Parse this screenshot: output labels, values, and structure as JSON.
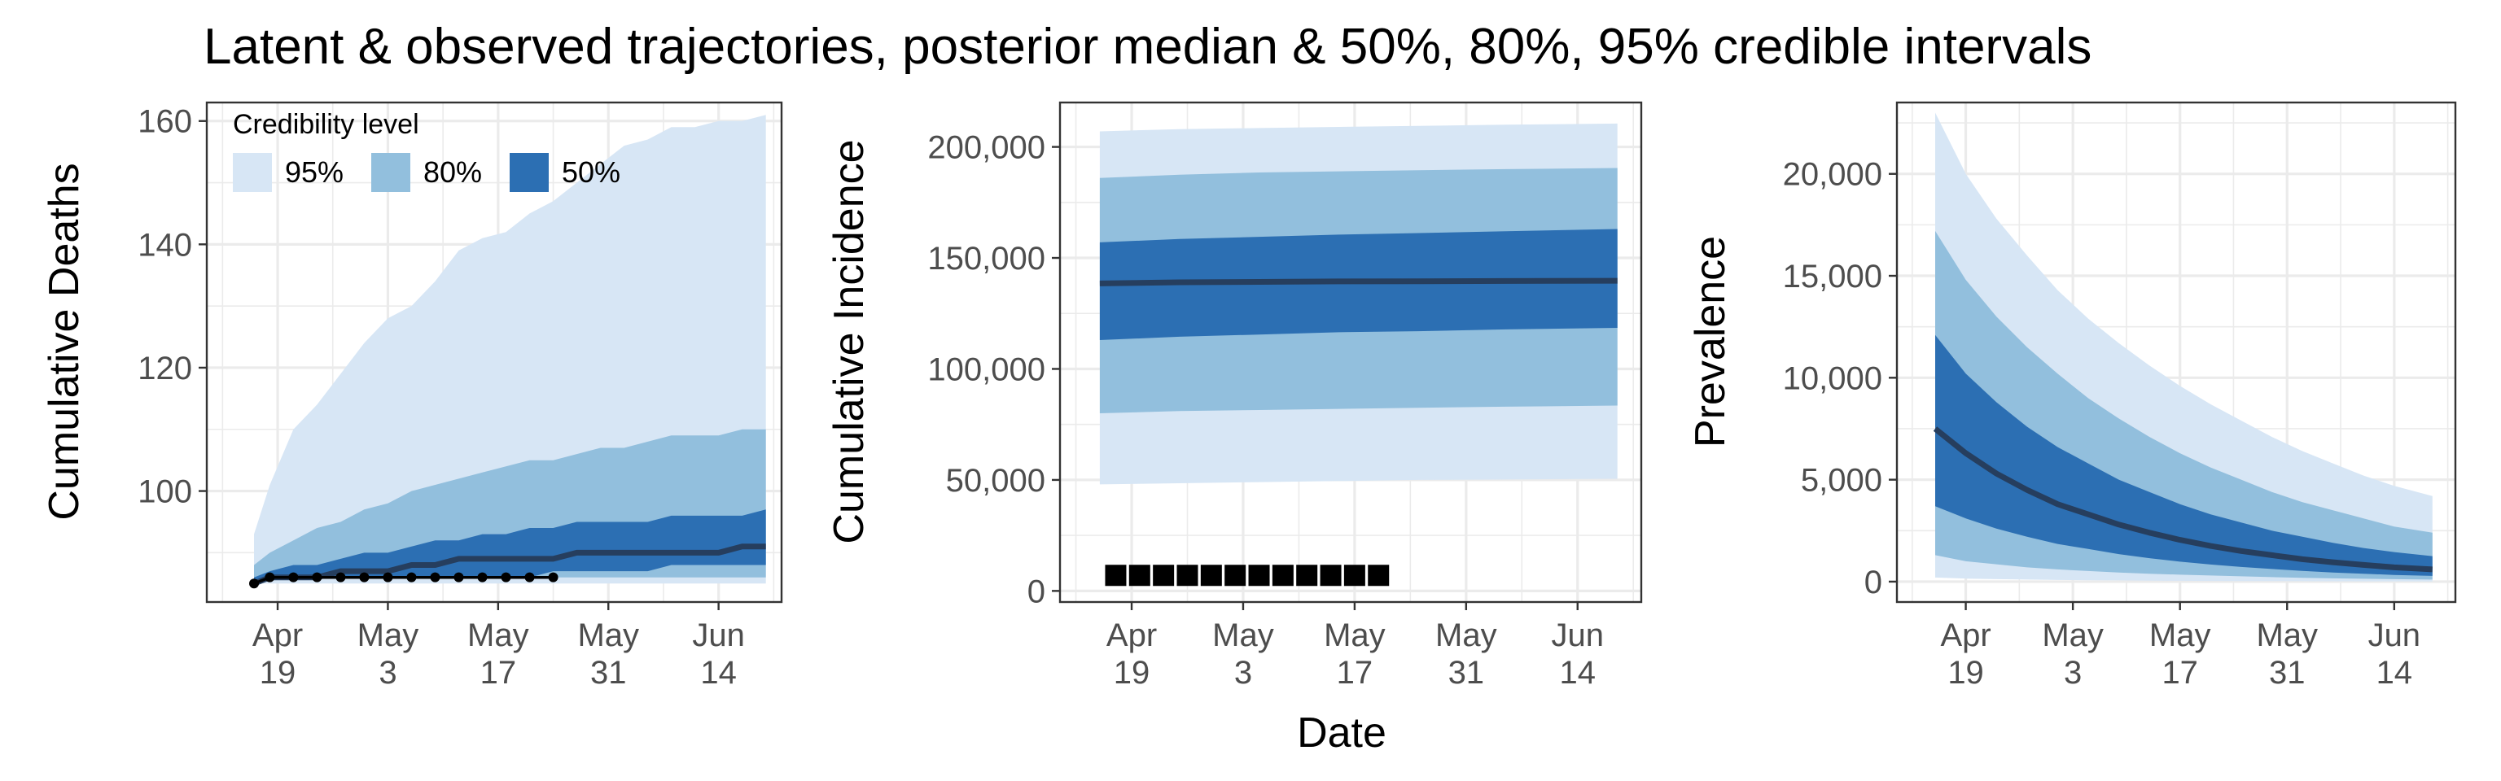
{
  "title": "Latent & observed trajectories, posterior median & 50%, 80%, 95% credible intervals",
  "shared_xlabel": "Date",
  "colors": {
    "band95": "#d7e6f5",
    "band80": "#92bfdd",
    "band50": "#2c6fb3",
    "median": "#263e5e",
    "observed": "#000000"
  },
  "chart_data": [
    {
      "type": "area",
      "ylabel": "Cumulative Deaths",
      "xlim": [
        "2020-04-10",
        "2020-06-22"
      ],
      "ylim": [
        82,
        163
      ],
      "x_ticks": [
        {
          "date": "2020-04-19",
          "line1": "Apr",
          "line2": "19"
        },
        {
          "date": "2020-05-03",
          "line1": "May",
          "line2": "3"
        },
        {
          "date": "2020-05-17",
          "line1": "May",
          "line2": "17"
        },
        {
          "date": "2020-05-31",
          "line1": "May",
          "line2": "31"
        },
        {
          "date": "2020-06-14",
          "line1": "Jun",
          "line2": "14"
        }
      ],
      "y_ticks": [
        {
          "value": 100,
          "label": "100"
        },
        {
          "value": 120,
          "label": "120"
        },
        {
          "value": 140,
          "label": "140"
        },
        {
          "value": 160,
          "label": "160"
        }
      ],
      "legend": {
        "title": "Credibility level",
        "placement": "top-left",
        "entries": [
          {
            "label": "95%",
            "color": "#d7e6f5"
          },
          {
            "label": "80%",
            "color": "#92bfdd"
          },
          {
            "label": "50%",
            "color": "#2c6fb3"
          }
        ]
      },
      "bands": [
        {
          "level": "95%",
          "x": [
            "2020-04-16",
            "2020-04-18",
            "2020-04-21",
            "2020-04-24",
            "2020-04-27",
            "2020-04-30",
            "2020-05-03",
            "2020-05-06",
            "2020-05-09",
            "2020-05-12",
            "2020-05-15",
            "2020-05-18",
            "2020-05-21",
            "2020-05-24",
            "2020-05-27",
            "2020-05-30",
            "2020-06-02",
            "2020-06-05",
            "2020-06-08",
            "2020-06-11",
            "2020-06-14",
            "2020-06-17",
            "2020-06-20"
          ],
          "lower": [
            85,
            85,
            85,
            85,
            85,
            85,
            85,
            85,
            85,
            85,
            85,
            85,
            85,
            85,
            85,
            85,
            85,
            85,
            85,
            85,
            85,
            85,
            85
          ],
          "upper": [
            93,
            101,
            110,
            114,
            119,
            124,
            128,
            130,
            134,
            139,
            141,
            142,
            145,
            147,
            150,
            153,
            156,
            157,
            159,
            159,
            160,
            160,
            161
          ]
        },
        {
          "level": "80%",
          "x": [
            "2020-04-16",
            "2020-04-18",
            "2020-04-21",
            "2020-04-24",
            "2020-04-27",
            "2020-04-30",
            "2020-05-03",
            "2020-05-06",
            "2020-05-09",
            "2020-05-12",
            "2020-05-15",
            "2020-05-18",
            "2020-05-21",
            "2020-05-24",
            "2020-05-27",
            "2020-05-30",
            "2020-06-02",
            "2020-06-05",
            "2020-06-08",
            "2020-06-11",
            "2020-06-14",
            "2020-06-17",
            "2020-06-20"
          ],
          "lower": [
            85,
            86,
            86,
            86,
            86,
            86,
            86,
            86,
            86,
            86,
            86,
            86,
            86,
            86,
            86,
            86,
            86,
            86,
            86,
            86,
            86,
            86,
            86
          ],
          "upper": [
            88,
            90,
            92,
            94,
            95,
            97,
            98,
            100,
            101,
            102,
            103,
            104,
            105,
            105,
            106,
            107,
            107,
            108,
            109,
            109,
            109,
            110,
            110
          ]
        },
        {
          "level": "50%",
          "x": [
            "2020-04-16",
            "2020-04-18",
            "2020-04-21",
            "2020-04-24",
            "2020-04-27",
            "2020-04-30",
            "2020-05-03",
            "2020-05-06",
            "2020-05-09",
            "2020-05-12",
            "2020-05-15",
            "2020-05-18",
            "2020-05-21",
            "2020-05-24",
            "2020-05-27",
            "2020-05-30",
            "2020-06-02",
            "2020-06-05",
            "2020-06-08",
            "2020-06-11",
            "2020-06-14",
            "2020-06-17",
            "2020-06-20"
          ],
          "lower": [
            85,
            86,
            86,
            86,
            86,
            86,
            86,
            86,
            86,
            86,
            86,
            86,
            86,
            87,
            87,
            87,
            87,
            87,
            88,
            88,
            88,
            88,
            88
          ],
          "upper": [
            86,
            87,
            88,
            88,
            89,
            90,
            90,
            91,
            92,
            92,
            93,
            93,
            94,
            94,
            95,
            95,
            95,
            95,
            96,
            96,
            96,
            96,
            97
          ]
        }
      ],
      "median": {
        "x": [
          "2020-04-16",
          "2020-04-18",
          "2020-04-21",
          "2020-04-24",
          "2020-04-27",
          "2020-04-30",
          "2020-05-03",
          "2020-05-06",
          "2020-05-09",
          "2020-05-12",
          "2020-05-15",
          "2020-05-18",
          "2020-05-21",
          "2020-05-24",
          "2020-05-27",
          "2020-05-30",
          "2020-06-02",
          "2020-06-05",
          "2020-06-08",
          "2020-06-11",
          "2020-06-14",
          "2020-06-17",
          "2020-06-20"
        ],
        "y": [
          85,
          86,
          86,
          86,
          87,
          87,
          87,
          88,
          88,
          89,
          89,
          89,
          89,
          89,
          90,
          90,
          90,
          90,
          90,
          90,
          90,
          91,
          91
        ]
      },
      "observed": {
        "x": [
          "2020-04-16",
          "2020-04-18",
          "2020-04-21",
          "2020-04-24",
          "2020-04-27",
          "2020-04-30",
          "2020-05-03",
          "2020-05-06",
          "2020-05-09",
          "2020-05-12",
          "2020-05-15",
          "2020-05-18",
          "2020-05-21",
          "2020-05-24"
        ],
        "y": [
          85,
          86,
          86,
          86,
          86,
          86,
          86,
          86,
          86,
          86,
          86,
          86,
          86,
          86
        ]
      }
    },
    {
      "type": "area",
      "ylabel": "Cumulative Incidence",
      "xlim": [
        "2020-04-10",
        "2020-06-22"
      ],
      "ylim": [
        -5000,
        220000
      ],
      "x_ticks": [
        {
          "date": "2020-04-19",
          "line1": "Apr",
          "line2": "19"
        },
        {
          "date": "2020-05-03",
          "line1": "May",
          "line2": "3"
        },
        {
          "date": "2020-05-17",
          "line1": "May",
          "line2": "17"
        },
        {
          "date": "2020-05-31",
          "line1": "May",
          "line2": "31"
        },
        {
          "date": "2020-06-14",
          "line1": "Jun",
          "line2": "14"
        }
      ],
      "y_ticks": [
        {
          "value": 0,
          "label": "0"
        },
        {
          "value": 50000,
          "label": "50,000"
        },
        {
          "value": 100000,
          "label": "100,000"
        },
        {
          "value": 150000,
          "label": "150,000"
        },
        {
          "value": 200000,
          "label": "200,000"
        }
      ],
      "bands": [
        {
          "level": "95%",
          "x": [
            "2020-04-15",
            "2020-04-25",
            "2020-05-05",
            "2020-05-15",
            "2020-05-25",
            "2020-06-05",
            "2020-06-19"
          ],
          "lower": [
            48000,
            48500,
            49000,
            49500,
            50000,
            50200,
            50500
          ],
          "upper": [
            207000,
            208000,
            208500,
            209000,
            209500,
            210000,
            210500
          ]
        },
        {
          "level": "80%",
          "x": [
            "2020-04-15",
            "2020-04-25",
            "2020-05-05",
            "2020-05-15",
            "2020-05-25",
            "2020-06-05",
            "2020-06-19"
          ],
          "lower": [
            80000,
            81000,
            81500,
            82000,
            82500,
            83000,
            83500
          ],
          "upper": [
            186000,
            187500,
            188500,
            189000,
            189500,
            190000,
            190500
          ]
        },
        {
          "level": "50%",
          "x": [
            "2020-04-15",
            "2020-04-25",
            "2020-05-05",
            "2020-05-15",
            "2020-05-25",
            "2020-06-05",
            "2020-06-19"
          ],
          "lower": [
            113000,
            114500,
            115500,
            116500,
            117000,
            117800,
            118500
          ],
          "upper": [
            157000,
            158500,
            159500,
            160500,
            161200,
            162000,
            163000
          ]
        }
      ],
      "median": {
        "x": [
          "2020-04-15",
          "2020-04-25",
          "2020-05-05",
          "2020-05-15",
          "2020-05-25",
          "2020-06-05",
          "2020-06-19"
        ],
        "y": [
          138500,
          139000,
          139200,
          139400,
          139500,
          139600,
          139700
        ]
      },
      "observed_squares": {
        "x": [
          "2020-04-17",
          "2020-04-20",
          "2020-04-23",
          "2020-04-26",
          "2020-04-29",
          "2020-05-02",
          "2020-05-05",
          "2020-05-08",
          "2020-05-11",
          "2020-05-14",
          "2020-05-17",
          "2020-05-20"
        ],
        "y": [
          7000,
          7000,
          7000,
          7000,
          7000,
          7000,
          7000,
          7000,
          7000,
          7000,
          7000,
          7000
        ]
      }
    },
    {
      "type": "area",
      "ylabel": "Prevalence",
      "xlim": [
        "2020-04-10",
        "2020-06-22"
      ],
      "ylim": [
        -1000,
        23500
      ],
      "x_ticks": [
        {
          "date": "2020-04-19",
          "line1": "Apr",
          "line2": "19"
        },
        {
          "date": "2020-05-03",
          "line1": "May",
          "line2": "3"
        },
        {
          "date": "2020-05-17",
          "line1": "May",
          "line2": "17"
        },
        {
          "date": "2020-05-31",
          "line1": "May",
          "line2": "31"
        },
        {
          "date": "2020-06-14",
          "line1": "Jun",
          "line2": "14"
        }
      ],
      "y_ticks": [
        {
          "value": 0,
          "label": "0"
        },
        {
          "value": 5000,
          "label": "5,000"
        },
        {
          "value": 10000,
          "label": "10,000"
        },
        {
          "value": 15000,
          "label": "15,000"
        },
        {
          "value": 20000,
          "label": "20,000"
        }
      ],
      "bands": [
        {
          "level": "95%",
          "x": [
            "2020-04-15",
            "2020-04-19",
            "2020-04-23",
            "2020-04-27",
            "2020-05-01",
            "2020-05-05",
            "2020-05-09",
            "2020-05-13",
            "2020-05-17",
            "2020-05-21",
            "2020-05-25",
            "2020-05-29",
            "2020-06-02",
            "2020-06-06",
            "2020-06-10",
            "2020-06-14",
            "2020-06-19"
          ],
          "lower": [
            200,
            150,
            120,
            100,
            80,
            70,
            60,
            50,
            40,
            35,
            30,
            25,
            20,
            18,
            15,
            12,
            10
          ],
          "upper": [
            23000,
            20000,
            17800,
            16000,
            14300,
            12900,
            11700,
            10600,
            9600,
            8700,
            7900,
            7100,
            6400,
            5800,
            5200,
            4700,
            4200
          ]
        },
        {
          "level": "80%",
          "x": [
            "2020-04-15",
            "2020-04-19",
            "2020-04-23",
            "2020-04-27",
            "2020-05-01",
            "2020-05-05",
            "2020-05-09",
            "2020-05-13",
            "2020-05-17",
            "2020-05-21",
            "2020-05-25",
            "2020-05-29",
            "2020-06-02",
            "2020-06-06",
            "2020-06-10",
            "2020-06-14",
            "2020-06-19"
          ],
          "lower": [
            1300,
            1000,
            850,
            700,
            600,
            520,
            450,
            390,
            340,
            300,
            260,
            220,
            190,
            160,
            140,
            120,
            100
          ],
          "upper": [
            17200,
            14800,
            13000,
            11500,
            10200,
            9000,
            8000,
            7100,
            6300,
            5600,
            5000,
            4400,
            3900,
            3500,
            3100,
            2700,
            2400
          ]
        },
        {
          "level": "50%",
          "x": [
            "2020-04-15",
            "2020-04-19",
            "2020-04-23",
            "2020-04-27",
            "2020-05-01",
            "2020-05-05",
            "2020-05-09",
            "2020-05-13",
            "2020-05-17",
            "2020-05-21",
            "2020-05-25",
            "2020-05-29",
            "2020-06-02",
            "2020-06-06",
            "2020-06-10",
            "2020-06-14",
            "2020-06-19"
          ],
          "lower": [
            3700,
            3100,
            2600,
            2200,
            1850,
            1600,
            1350,
            1150,
            980,
            840,
            720,
            620,
            530,
            450,
            390,
            330,
            280
          ],
          "upper": [
            12100,
            10200,
            8800,
            7600,
            6600,
            5800,
            5000,
            4400,
            3800,
            3300,
            2900,
            2500,
            2200,
            1900,
            1650,
            1450,
            1250
          ]
        }
      ],
      "median": {
        "x": [
          "2020-04-15",
          "2020-04-19",
          "2020-04-23",
          "2020-04-27",
          "2020-05-01",
          "2020-05-05",
          "2020-05-09",
          "2020-05-13",
          "2020-05-17",
          "2020-05-21",
          "2020-05-25",
          "2020-05-29",
          "2020-06-02",
          "2020-06-06",
          "2020-06-10",
          "2020-06-14",
          "2020-06-19"
        ],
        "y": [
          7500,
          6300,
          5300,
          4500,
          3800,
          3300,
          2800,
          2400,
          2050,
          1750,
          1500,
          1300,
          1100,
          950,
          820,
          700,
          600
        ]
      }
    }
  ]
}
